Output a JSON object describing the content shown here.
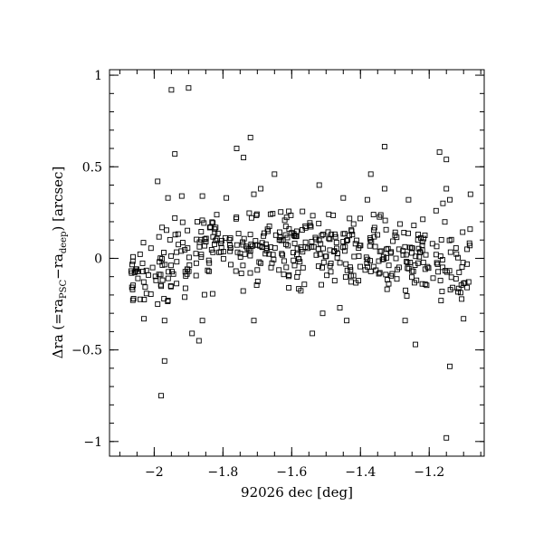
{
  "chart_data": {
    "type": "scatter",
    "title": "",
    "xlabel": "92026 dec [deg]",
    "ylabel": {
      "prefix": "Δra (=ra",
      "sub1": "PSC",
      "mid": "−ra",
      "sub2": "deep",
      "suffix": ") [arcsec]"
    },
    "xlim": [
      -2.13,
      -1.04
    ],
    "ylim": [
      -1.08,
      1.03
    ],
    "xticks": [
      {
        "value": -2.0,
        "label": "−2"
      },
      {
        "value": -1.8,
        "label": "−1.8"
      },
      {
        "value": -1.6,
        "label": "−1.6"
      },
      {
        "value": -1.4,
        "label": "−1.4"
      },
      {
        "value": -1.2,
        "label": "−1.2"
      }
    ],
    "yticks": [
      {
        "value": -1.0,
        "label": "−1"
      },
      {
        "value": -0.5,
        "label": "−0.5"
      },
      {
        "value": 0.0,
        "label": "0"
      },
      {
        "value": 0.5,
        "label": "0.5"
      },
      {
        "value": 1.0,
        "label": "1"
      }
    ],
    "x_minor_step": 0.05,
    "y_minor_step": 0.1,
    "grid": false,
    "marker": "open-square",
    "points_outliers": [
      [
        -1.95,
        0.92
      ],
      [
        -1.9,
        0.93
      ],
      [
        -1.94,
        0.57
      ],
      [
        -1.72,
        0.66
      ],
      [
        -1.76,
        0.6
      ],
      [
        -1.74,
        0.55
      ],
      [
        -1.33,
        0.61
      ],
      [
        -1.17,
        0.58
      ],
      [
        -1.15,
        0.54
      ],
      [
        -1.65,
        0.46
      ],
      [
        -1.37,
        0.46
      ],
      [
        -1.99,
        0.42
      ],
      [
        -1.52,
        0.4
      ],
      [
        -1.15,
        0.38
      ],
      [
        -1.69,
        0.38
      ],
      [
        -1.33,
        0.38
      ],
      [
        -1.86,
        0.34
      ],
      [
        -1.92,
        0.34
      ],
      [
        -1.08,
        0.35
      ],
      [
        -1.96,
        0.33
      ],
      [
        -1.71,
        0.35
      ],
      [
        -1.79,
        0.33
      ],
      [
        -1.45,
        0.33
      ],
      [
        -1.38,
        0.32
      ],
      [
        -1.14,
        0.32
      ],
      [
        -1.26,
        0.32
      ],
      [
        -1.16,
        0.3
      ],
      [
        -1.18,
        0.26
      ],
      [
        -1.94,
        0.22
      ],
      [
        -1.97,
        -0.34
      ],
      [
        -1.89,
        -0.41
      ],
      [
        -1.86,
        -0.34
      ],
      [
        -1.71,
        -0.34
      ],
      [
        -1.87,
        -0.45
      ],
      [
        -1.54,
        -0.41
      ],
      [
        -1.51,
        -0.3
      ],
      [
        -1.46,
        -0.27
      ],
      [
        -1.24,
        -0.47
      ],
      [
        -1.44,
        -0.34
      ],
      [
        -1.27,
        -0.34
      ],
      [
        -1.98,
        -0.75
      ],
      [
        -1.97,
        -0.56
      ],
      [
        -1.14,
        -0.59
      ],
      [
        -1.15,
        -0.98
      ],
      [
        -1.1,
        -0.33
      ],
      [
        -2.03,
        -0.33
      ],
      [
        -1.96,
        -0.23
      ],
      [
        -1.99,
        -0.25
      ],
      [
        -2.06,
        -0.22
      ]
    ],
    "main_cloud": {
      "count": 470,
      "seed": 92026,
      "x_range": [
        -2.07,
        -1.08
      ],
      "center_curve": [
        [
          -2.07,
          -0.12
        ],
        [
          -1.95,
          -0.02
        ],
        [
          -1.8,
          0.08
        ],
        [
          -1.6,
          0.05
        ],
        [
          -1.4,
          0.04
        ],
        [
          -1.2,
          0.0
        ],
        [
          -1.08,
          -0.05
        ]
      ],
      "sigma": 0.1
    }
  }
}
